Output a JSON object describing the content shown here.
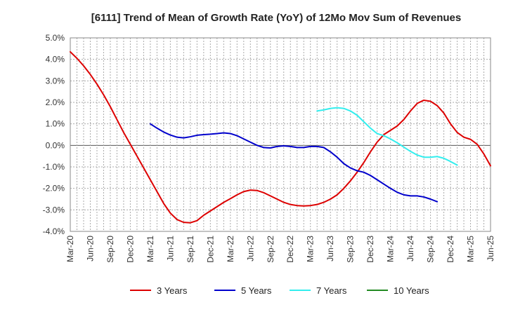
{
  "chart_data": {
    "type": "line",
    "title": "[6111]  Trend of Mean of Growth Rate (YoY) of 12Mo Mov Sum of Revenues",
    "xlabel": "",
    "ylabel": "",
    "ylim": [
      -4.0,
      5.0
    ],
    "y_ticks": [
      5.0,
      4.0,
      3.0,
      2.0,
      1.0,
      0.0,
      -1.0,
      -2.0,
      -3.0,
      -4.0
    ],
    "y_tick_labels": [
      "5.0%",
      "4.0%",
      "3.0%",
      "2.0%",
      "1.0%",
      "0.0%",
      "-1.0%",
      "-2.0%",
      "-3.0%",
      "-4.0%"
    ],
    "x_tick_labels": [
      "Mar-20",
      "Jun-20",
      "Sep-20",
      "Dec-20",
      "Mar-21",
      "Jun-21",
      "Sep-21",
      "Dec-21",
      "Mar-22",
      "Jun-22",
      "Sep-22",
      "Dec-22",
      "Mar-23",
      "Jun-23",
      "Sep-23",
      "Dec-23",
      "Mar-24",
      "Jun-24",
      "Sep-24",
      "Dec-24",
      "Mar-25",
      "Jun-25"
    ],
    "grid": true,
    "legend_position": "bottom",
    "series": [
      {
        "name": "3 Years",
        "color": "#dd0000",
        "start_index": 0,
        "values": [
          4.35,
          4.05,
          3.7,
          3.3,
          2.85,
          2.35,
          1.8,
          1.2,
          0.6,
          0.05,
          -0.5,
          -1.05,
          -1.6,
          -2.15,
          -2.7,
          -3.15,
          -3.45,
          -3.58,
          -3.6,
          -3.5,
          -3.25,
          -3.05,
          -2.85,
          -2.65,
          -2.48,
          -2.3,
          -2.15,
          -2.08,
          -2.1,
          -2.2,
          -2.35,
          -2.5,
          -2.65,
          -2.75,
          -2.8,
          -2.82,
          -2.8,
          -2.75,
          -2.65,
          -2.5,
          -2.3,
          -2.0,
          -1.65,
          -1.25,
          -0.8,
          -0.3,
          0.15,
          0.5,
          0.7,
          0.9,
          1.2,
          1.6,
          1.95,
          2.1,
          2.05,
          1.85,
          1.5,
          1.0,
          0.6,
          0.38,
          0.28,
          0.05,
          -0.4,
          -0.95
        ]
      },
      {
        "name": "5 Years",
        "color": "#0000cc",
        "start_index": 12,
        "values": [
          1.0,
          0.8,
          0.62,
          0.48,
          0.38,
          0.35,
          0.4,
          0.47,
          0.5,
          0.52,
          0.55,
          0.58,
          0.55,
          0.45,
          0.3,
          0.15,
          0.0,
          -0.1,
          -0.12,
          -0.05,
          -0.02,
          -0.05,
          -0.1,
          -0.1,
          -0.05,
          -0.05,
          -0.1,
          -0.3,
          -0.55,
          -0.85,
          -1.05,
          -1.18,
          -1.25,
          -1.4,
          -1.6,
          -1.8,
          -2.0,
          -2.18,
          -2.3,
          -2.35,
          -2.35,
          -2.4,
          -2.5,
          -2.62
        ]
      },
      {
        "name": "7 Years",
        "color": "#33eeee",
        "start_index": 37,
        "values": [
          1.6,
          1.65,
          1.72,
          1.75,
          1.72,
          1.6,
          1.4,
          1.1,
          0.8,
          0.55,
          0.45,
          0.3,
          0.12,
          -0.08,
          -0.28,
          -0.45,
          -0.55,
          -0.55,
          -0.52,
          -0.6,
          -0.75,
          -0.92
        ]
      },
      {
        "name": "10 Years",
        "color": "#228B22",
        "start_index": 0,
        "values": []
      }
    ]
  }
}
